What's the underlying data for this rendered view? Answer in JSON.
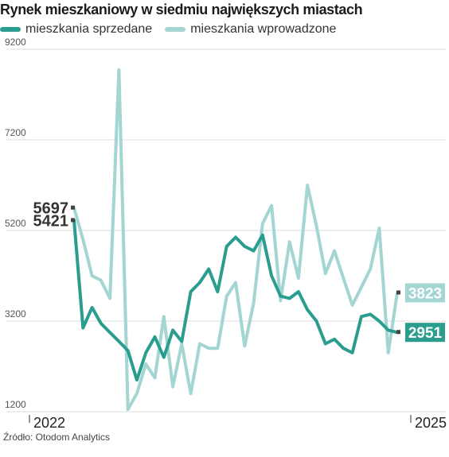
{
  "header": {
    "title": "Rynek mieszkaniowy w siedmiu największych miastach"
  },
  "legend": {
    "items": [
      {
        "label": "mieszkania sprzedane",
        "color": "#2a9d8f"
      },
      {
        "label": "mieszkania wprowadzone",
        "color": "#a3d5d3"
      }
    ]
  },
  "footer": {
    "source": "Źródło: Otodom Analytics"
  },
  "chart_data": {
    "type": "line",
    "title": "Rynek mieszkaniowy w siedmiu największych miastach",
    "xlabel": "",
    "ylabel": "",
    "ylim": [
      1200,
      9200
    ],
    "yticks": [
      1200,
      3200,
      5200,
      7200,
      9200
    ],
    "x_tick_labels": [
      "I 2022",
      "I 2025"
    ],
    "grid": true,
    "legend_position": "top-left",
    "series": [
      {
        "name": "mieszkania sprzedane",
        "color": "#2a9d8f",
        "values": [
          5421,
          3050,
          3500,
          3150,
          2950,
          2750,
          2550,
          1900,
          2500,
          2850,
          2400,
          3000,
          2750,
          3850,
          4050,
          4350,
          3850,
          4850,
          5050,
          4850,
          4750,
          5100,
          4200,
          3750,
          3700,
          3850,
          3450,
          3200,
          2700,
          2800,
          2600,
          2500,
          3300,
          3350,
          3200,
          3000,
          2951
        ],
        "end_label": "2951",
        "start_label": "5421"
      },
      {
        "name": "mieszkania wprowadzone",
        "color": "#a3d5d3",
        "values": [
          5697,
          5000,
          4200,
          4100,
          3700,
          8750,
          1250,
          1600,
          2250,
          1950,
          3300,
          1750,
          2700,
          1600,
          2700,
          2600,
          2600,
          3750,
          4050,
          2650,
          3600,
          5350,
          5750,
          3650,
          4950,
          4150,
          6200,
          5300,
          4250,
          4750,
          4150,
          3550,
          3950,
          4350,
          5250,
          2500,
          3823
        ],
        "end_label": "3823",
        "start_label": "5697"
      }
    ]
  }
}
